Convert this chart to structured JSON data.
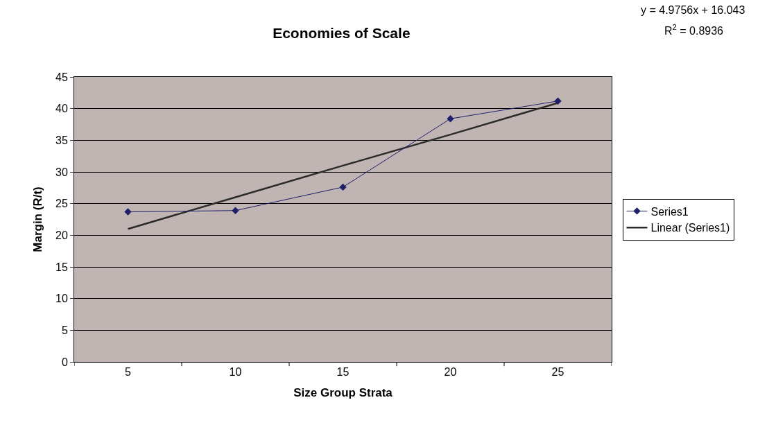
{
  "chart_data": {
    "type": "line",
    "title": "Economies of Scale",
    "xlabel": "Size Group Strata",
    "ylabel": "Margin (R/t)",
    "categories": [
      "5",
      "10",
      "15",
      "20",
      "25"
    ],
    "series": [
      {
        "name": "Series1",
        "color": "#1f1f6b",
        "values": [
          23.7,
          23.9,
          27.6,
          38.4,
          41.2
        ],
        "marker": "diamond"
      },
      {
        "name": "Linear (Series1)",
        "color": "#2b2b2b",
        "values": [
          21.0,
          26.0,
          31.0,
          35.9,
          40.9
        ],
        "marker": "none"
      }
    ],
    "ylim": [
      0,
      45
    ],
    "yticks": [
      0,
      5,
      10,
      15,
      20,
      25,
      30,
      35,
      40,
      45
    ],
    "grid": "y",
    "legend": "right",
    "annotations": [
      "y = 4.9756x + 16.043",
      "R$^{2}$ = 0.8936"
    ]
  }
}
